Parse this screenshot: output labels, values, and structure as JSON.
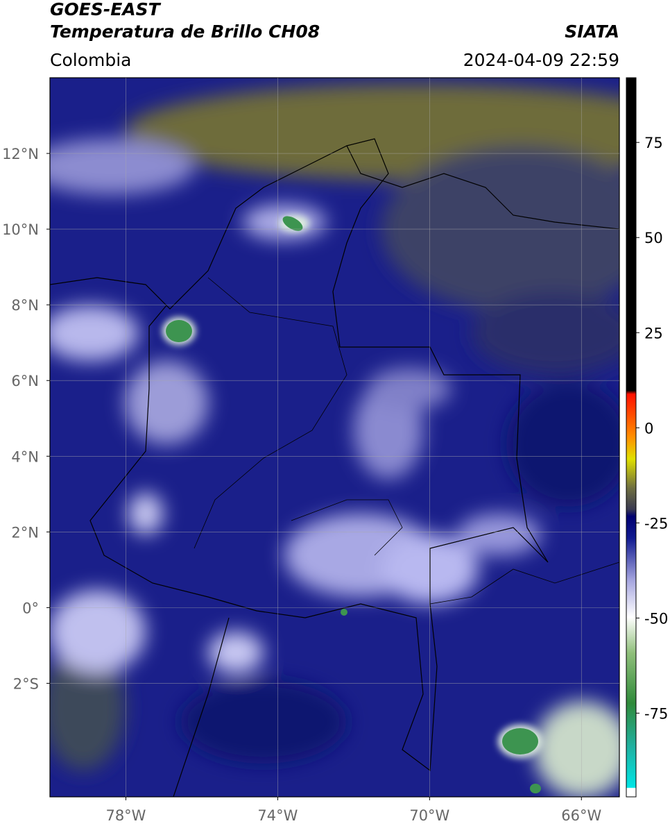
{
  "header": {
    "satellite": "GOES-EAST",
    "product": "Temperatura de Brillo CH08",
    "source": "SIATA",
    "region": "Colombia",
    "datetime": "2024-04-09 22:59"
  },
  "map": {
    "lon_range": [
      -80,
      -65
    ],
    "lat_range": [
      -5,
      14
    ],
    "lon_ticks": [
      {
        "value": -78,
        "label": "78°W"
      },
      {
        "value": -74,
        "label": "74°W"
      },
      {
        "value": -70,
        "label": "70°W"
      },
      {
        "value": -66,
        "label": "66°W"
      }
    ],
    "lat_ticks": [
      {
        "value": 12,
        "label": "12°N"
      },
      {
        "value": 10,
        "label": "10°N"
      },
      {
        "value": 8,
        "label": "8°N"
      },
      {
        "value": 6,
        "label": "6°N"
      },
      {
        "value": 4,
        "label": "4°N"
      },
      {
        "value": 2,
        "label": "2°N"
      },
      {
        "value": 0,
        "label": "0°"
      },
      {
        "value": -2,
        "label": "2°S"
      }
    ],
    "grid": true
  },
  "colorbar": {
    "range": [
      -97,
      92
    ],
    "ticks": [
      75,
      50,
      25,
      0,
      -25,
      -50,
      -75
    ]
  }
}
